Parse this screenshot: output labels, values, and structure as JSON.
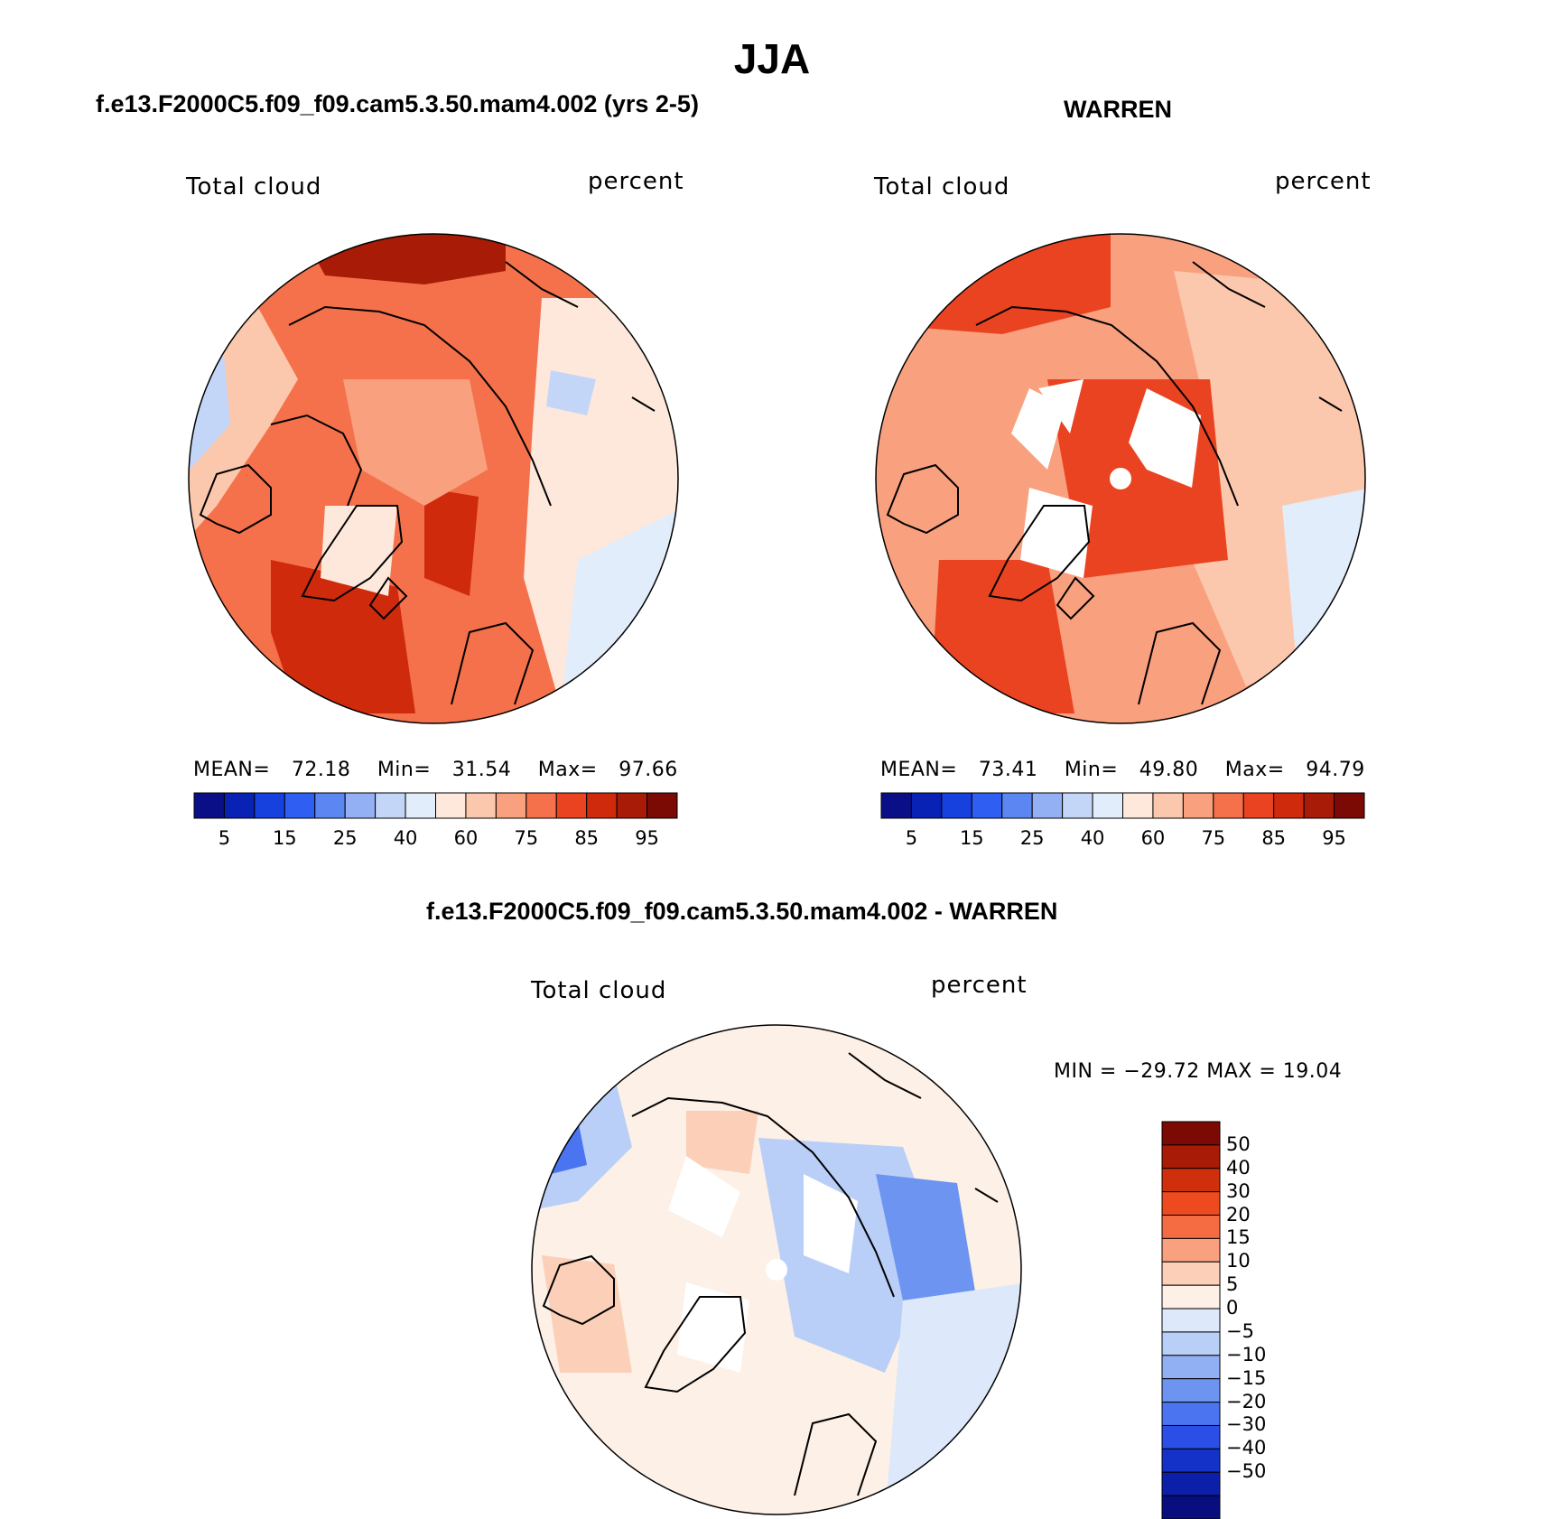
{
  "title": "JJA",
  "panels": [
    {
      "id": "model",
      "case_title": "f.e13.F2000C5.f09_f09.cam5.3.50.mam4.002 (yrs 2-5)",
      "variable": "Total cloud",
      "units": "percent",
      "stats": {
        "mean_label": "MEAN=",
        "mean": "72.18",
        "min_label": "Min=",
        "min": "31.54",
        "max_label": "Max=",
        "max": "97.66"
      }
    },
    {
      "id": "obs",
      "case_title": "WARREN",
      "variable": "Total cloud",
      "units": "percent",
      "stats": {
        "mean_label": "MEAN=",
        "mean": "73.41",
        "min_label": "Min=",
        "min": "49.80",
        "max_label": "Max=",
        "max": "94.79"
      }
    },
    {
      "id": "diff",
      "case_title": "f.e13.F2000C5.f09_f09.cam5.3.50.mam4.002 - WARREN",
      "variable": "Total cloud",
      "units": "percent",
      "stats_text": "MIN = −29.72 MAX =   19.04"
    }
  ],
  "colorbar_abs": {
    "colors": [
      "#0a0f87",
      "#0722b5",
      "#1741de",
      "#2f5ef2",
      "#5c86f2",
      "#93b0f4",
      "#c4d6f8",
      "#e2edfb",
      "#fde8db",
      "#fcc8ad",
      "#f9a07f",
      "#f4714b",
      "#ea4321",
      "#cf2a0c",
      "#a81b06",
      "#7a0a03"
    ],
    "tick_labels": [
      "5",
      "15",
      "25",
      "40",
      "60",
      "75",
      "85",
      "95"
    ]
  },
  "colorbar_diff": {
    "colors": [
      "#7a0a03",
      "#a81b06",
      "#d02f0c",
      "#ee4a1f",
      "#f56c42",
      "#f9a07f",
      "#fcd0b8",
      "#fdf0e6",
      "#dde9fb",
      "#b9cff8",
      "#91b0f4",
      "#6e94f2",
      "#4a74f0",
      "#2a4ee6",
      "#1432c8",
      "#0b1fa8",
      "#080e7e"
    ],
    "tick_labels": [
      "50",
      "40",
      "30",
      "20",
      "15",
      "10",
      "5",
      "0",
      "−5",
      "−10",
      "−15",
      "−20",
      "−30",
      "−40",
      "−50"
    ]
  },
  "map_colors": {
    "map1_base": "#f4714b",
    "map2_base": "#f9a07f",
    "map3_base": "#fde8db",
    "coast": "#000000",
    "missing": "#ffffff"
  }
}
